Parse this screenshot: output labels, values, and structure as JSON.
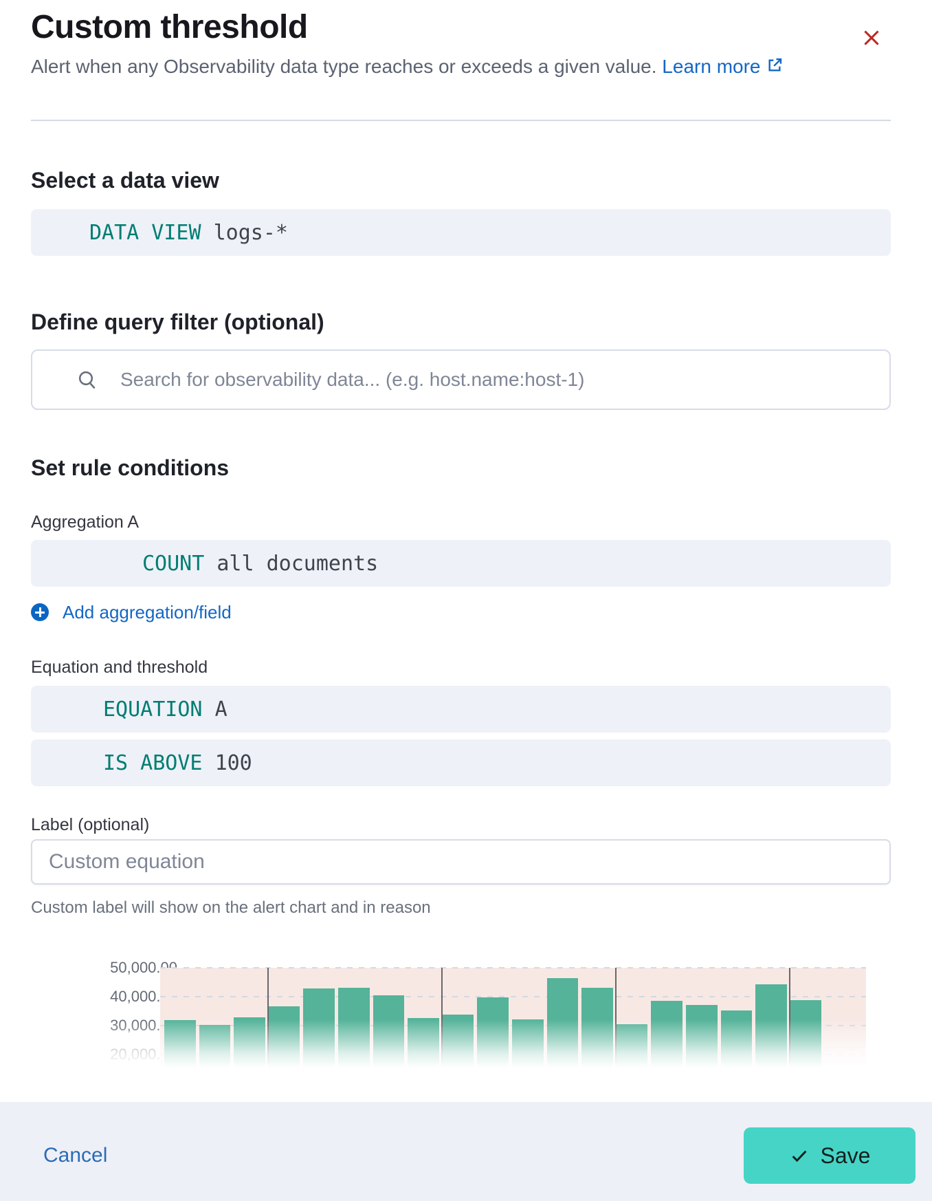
{
  "header": {
    "title": "Custom threshold",
    "description": "Alert when any Observability data type reaches or exceeds a given value.",
    "learn_more": "Learn more"
  },
  "sections": {
    "data_view": {
      "heading": "Select a data view",
      "expression": {
        "keyword": "DATA VIEW ",
        "value": "logs-*"
      }
    },
    "query_filter": {
      "heading": "Define query filter (optional)",
      "search_placeholder": "Search for observability data... (e.g. host.name:host-1)"
    },
    "rule_conditions": {
      "heading": "Set rule conditions",
      "aggregation": {
        "label": "Aggregation A",
        "expression": {
          "keyword": "COUNT ",
          "value": "all documents"
        }
      },
      "add_aggregation_label": "Add aggregation/field",
      "equation": {
        "label": "Equation and threshold",
        "expression": {
          "keyword": "EQUATION ",
          "value": "A"
        }
      },
      "threshold": {
        "expression": {
          "keyword": "IS ABOVE ",
          "value": "100"
        }
      },
      "custom_label": {
        "label": "Label (optional)",
        "placeholder": "Custom equation",
        "help": "Custom label will show on the alert chart and in reason"
      }
    }
  },
  "chart_data": {
    "type": "bar",
    "title": "",
    "xlabel": "",
    "ylabel": "",
    "y_ticks": [
      "50,000.00",
      "40,000.00",
      "30,000.00",
      "20,000.00"
    ],
    "y_tick_values": [
      50000,
      40000,
      30000,
      20000
    ],
    "values": [
      32000,
      30200,
      32800,
      36600,
      42800,
      43200,
      40500,
      32600,
      33700,
      39800,
      32200,
      46400,
      43200,
      30400,
      38600,
      37200,
      35200,
      44200,
      38700
    ],
    "num_slots": 20,
    "annotation_line_indices": [
      3,
      8,
      13,
      18
    ],
    "threshold_value": 100,
    "visible_ylim": [
      15500,
      50000
    ],
    "grid": "dashed-horizontal",
    "legend": "none",
    "bar_color": "#54b399",
    "threshold_region_color": "#f7e8e4"
  },
  "footer": {
    "cancel_label": "Cancel",
    "save_label": "Save"
  },
  "icons": {
    "close": "x-cross",
    "external_link": "box-arrow-up-right",
    "search": "magnifier",
    "add": "plus-circle",
    "save_check": "checkmark"
  },
  "colors": {
    "keyword_teal": "#017d73",
    "bar_teal": "#54b399",
    "threshold_pink": "#f7e8e4",
    "link_blue": "#1467c5",
    "cancel_blue": "#2a6cb8",
    "danger_red": "#bd271e",
    "save_button": "#46d4c6",
    "box_background": "#eef1f7",
    "footer_background": "#eef0f7"
  }
}
